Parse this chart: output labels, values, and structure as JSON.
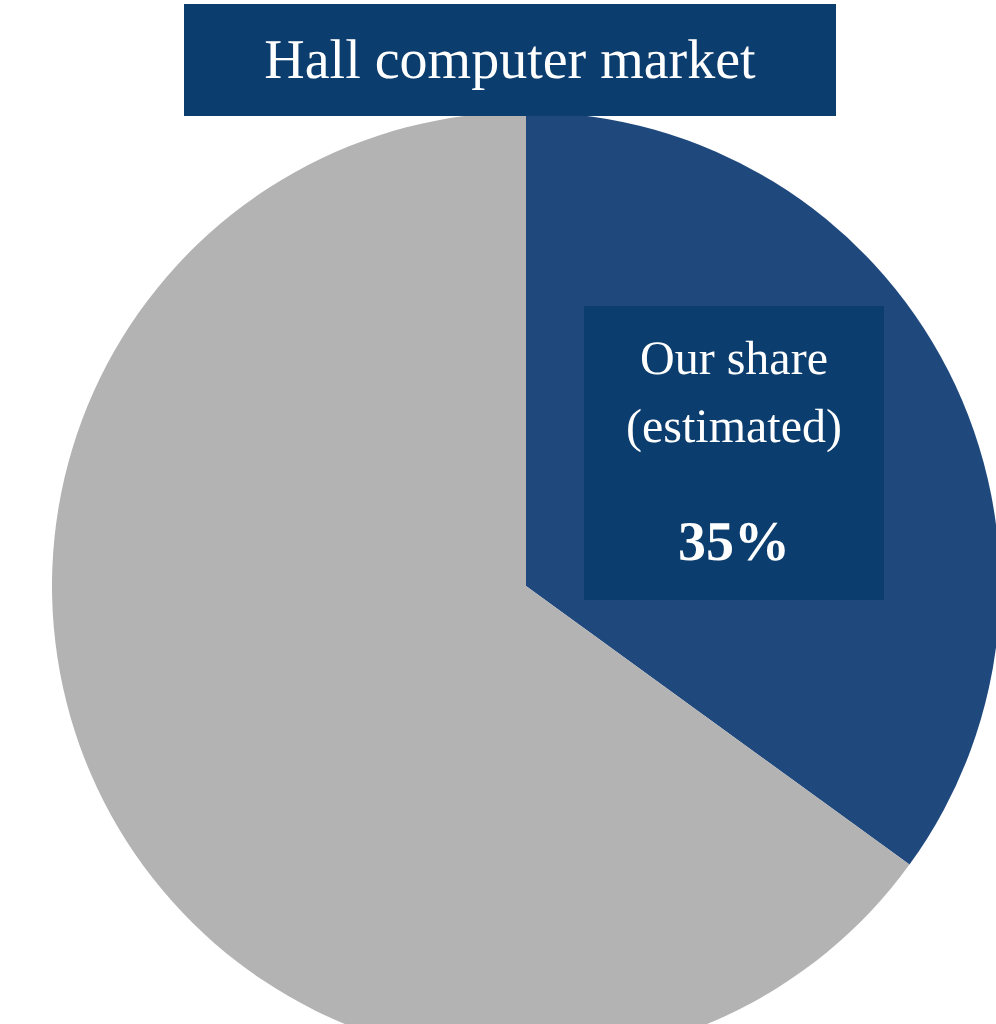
{
  "chart_data": {
    "type": "pie",
    "title": "Hall computer market",
    "categories": [
      "Our share (estimated)",
      null
    ],
    "values": [
      35,
      65
    ],
    "colors": [
      "#1f497d",
      "#b3b3b3"
    ],
    "value_labels": [
      "35%",
      null
    ]
  }
}
